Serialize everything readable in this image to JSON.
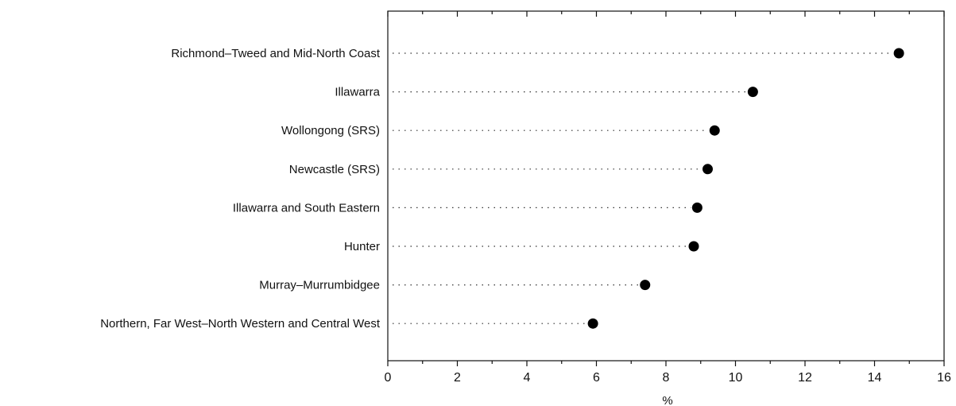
{
  "chart_data": {
    "type": "dot",
    "categories": [
      "Richmond–Tweed and Mid-North Coast",
      "Illawarra",
      "Wollongong (SRS)",
      "Newcastle (SRS)",
      "Illawarra and South Eastern",
      "Hunter",
      "Murray–Murrumbidgee",
      "Northern, Far West–North Western and Central West"
    ],
    "values": [
      14.7,
      10.5,
      9.4,
      9.2,
      8.9,
      8.8,
      7.4,
      5.9
    ],
    "xlabel": "%",
    "xlim": [
      0,
      16
    ],
    "xticks": [
      "0",
      "2",
      "4",
      "6",
      "8",
      "10",
      "12",
      "14",
      "16"
    ],
    "grid": false,
    "legend": "none",
    "colors": {
      "marker": "#000000",
      "axis": "#111111",
      "leader": "#333333"
    }
  }
}
